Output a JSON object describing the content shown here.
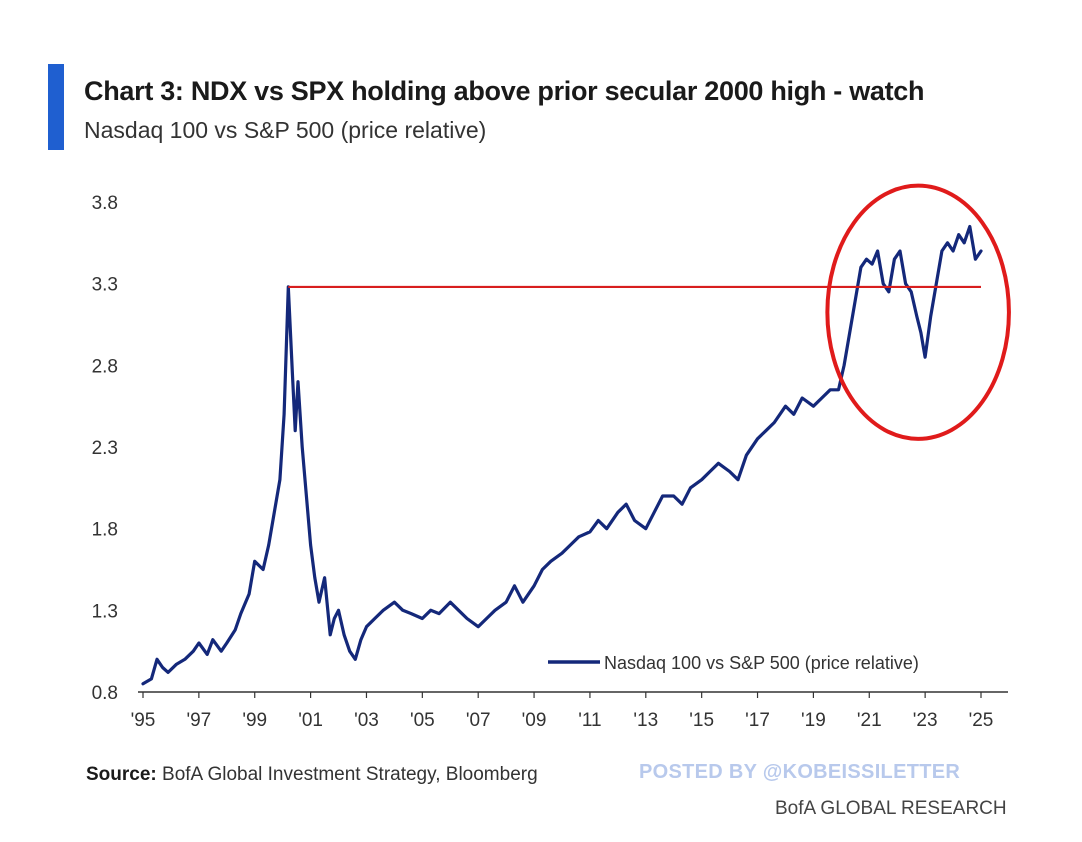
{
  "header": {
    "title": "Chart 3: NDX vs SPX holding above prior secular 2000 high - watch",
    "subtitle": "Nasdaq 100 vs S&P 500 (price relative)"
  },
  "footer": {
    "source_label": "Source:",
    "source_text": "BofA Global Investment Strategy, Bloomberg",
    "watermark": "POSTED BY @KOBEISSILETTER",
    "brand": "BofA GLOBAL RESEARCH"
  },
  "colors": {
    "series": "#14287a",
    "reference_line": "#d81e1e",
    "highlight_circle": "#e01b1b",
    "accent": "#1f5fd0"
  },
  "chart_data": {
    "type": "line",
    "title": "Chart 3: NDX vs SPX holding above prior secular 2000 high - watch",
    "subtitle": "Nasdaq 100 vs S&P 500 (price relative)",
    "xlabel": "",
    "ylabel": "",
    "xlim": [
      1995,
      2025.5
    ],
    "ylim": [
      0.8,
      3.8
    ],
    "yticks": [
      0.8,
      1.3,
      1.8,
      2.3,
      2.8,
      3.3,
      3.8
    ],
    "xtick_values": [
      1995,
      1997,
      1999,
      2001,
      2003,
      2005,
      2007,
      2009,
      2011,
      2013,
      2015,
      2017,
      2019,
      2021,
      2023,
      2025
    ],
    "xtick_labels": [
      "'95",
      "'97",
      "'99",
      "'01",
      "'03",
      "'05",
      "'07",
      "'09",
      "'11",
      "'13",
      "'15",
      "'17",
      "'19",
      "'21",
      "'23",
      "'25"
    ],
    "grid": false,
    "legend": "bottom-right",
    "reference_line": {
      "y": 3.28,
      "x_start": 2000.2,
      "x_end": 2025.0
    },
    "highlight": {
      "type": "ellipse",
      "x_range": [
        2019.5,
        2026
      ],
      "y_range": [
        2.35,
        3.9
      ]
    },
    "series": [
      {
        "name": "Nasdaq 100 vs S&P 500 (price relative)",
        "x": [
          1995.0,
          1995.3,
          1995.5,
          1995.7,
          1995.9,
          1996.2,
          1996.5,
          1996.8,
          1997.0,
          1997.3,
          1997.5,
          1997.8,
          1998.0,
          1998.3,
          1998.5,
          1998.8,
          1999.0,
          1999.3,
          1999.5,
          1999.7,
          1999.9,
          2000.05,
          2000.2,
          2000.35,
          2000.45,
          2000.55,
          2000.7,
          2000.85,
          2001.0,
          2001.15,
          2001.3,
          2001.5,
          2001.7,
          2001.85,
          2002.0,
          2002.2,
          2002.4,
          2002.6,
          2002.8,
          2003.0,
          2003.3,
          2003.6,
          2004.0,
          2004.3,
          2004.6,
          2005.0,
          2005.3,
          2005.6,
          2006.0,
          2006.3,
          2006.6,
          2007.0,
          2007.3,
          2007.6,
          2008.0,
          2008.3,
          2008.6,
          2009.0,
          2009.3,
          2009.6,
          2010.0,
          2010.3,
          2010.6,
          2011.0,
          2011.3,
          2011.6,
          2012.0,
          2012.3,
          2012.6,
          2013.0,
          2013.3,
          2013.6,
          2014.0,
          2014.3,
          2014.6,
          2015.0,
          2015.3,
          2015.6,
          2016.0,
          2016.3,
          2016.6,
          2017.0,
          2017.3,
          2017.6,
          2018.0,
          2018.3,
          2018.6,
          2019.0,
          2019.3,
          2019.6,
          2019.9,
          2020.1,
          2020.3,
          2020.5,
          2020.7,
          2020.9,
          2021.1,
          2021.3,
          2021.5,
          2021.7,
          2021.9,
          2022.1,
          2022.3,
          2022.5,
          2022.7,
          2022.85,
          2023.0,
          2023.2,
          2023.4,
          2023.6,
          2023.8,
          2024.0,
          2024.2,
          2024.4,
          2024.6,
          2024.8,
          2025.0
        ],
        "y": [
          0.85,
          0.88,
          1.0,
          0.95,
          0.92,
          0.97,
          1.0,
          1.05,
          1.1,
          1.03,
          1.12,
          1.05,
          1.1,
          1.18,
          1.28,
          1.4,
          1.6,
          1.55,
          1.7,
          1.9,
          2.1,
          2.5,
          3.28,
          2.75,
          2.4,
          2.7,
          2.3,
          2.0,
          1.7,
          1.5,
          1.35,
          1.5,
          1.15,
          1.25,
          1.3,
          1.15,
          1.05,
          1.0,
          1.12,
          1.2,
          1.25,
          1.3,
          1.35,
          1.3,
          1.28,
          1.25,
          1.3,
          1.28,
          1.35,
          1.3,
          1.25,
          1.2,
          1.25,
          1.3,
          1.35,
          1.45,
          1.35,
          1.45,
          1.55,
          1.6,
          1.65,
          1.7,
          1.75,
          1.78,
          1.85,
          1.8,
          1.9,
          1.95,
          1.85,
          1.8,
          1.9,
          2.0,
          2.0,
          1.95,
          2.05,
          2.1,
          2.15,
          2.2,
          2.15,
          2.1,
          2.25,
          2.35,
          2.4,
          2.45,
          2.55,
          2.5,
          2.6,
          2.55,
          2.6,
          2.65,
          2.65,
          2.8,
          3.0,
          3.2,
          3.4,
          3.45,
          3.42,
          3.5,
          3.3,
          3.25,
          3.45,
          3.5,
          3.3,
          3.25,
          3.1,
          3.0,
          2.85,
          3.1,
          3.3,
          3.5,
          3.55,
          3.5,
          3.6,
          3.55,
          3.65,
          3.45,
          3.5
        ]
      }
    ]
  }
}
